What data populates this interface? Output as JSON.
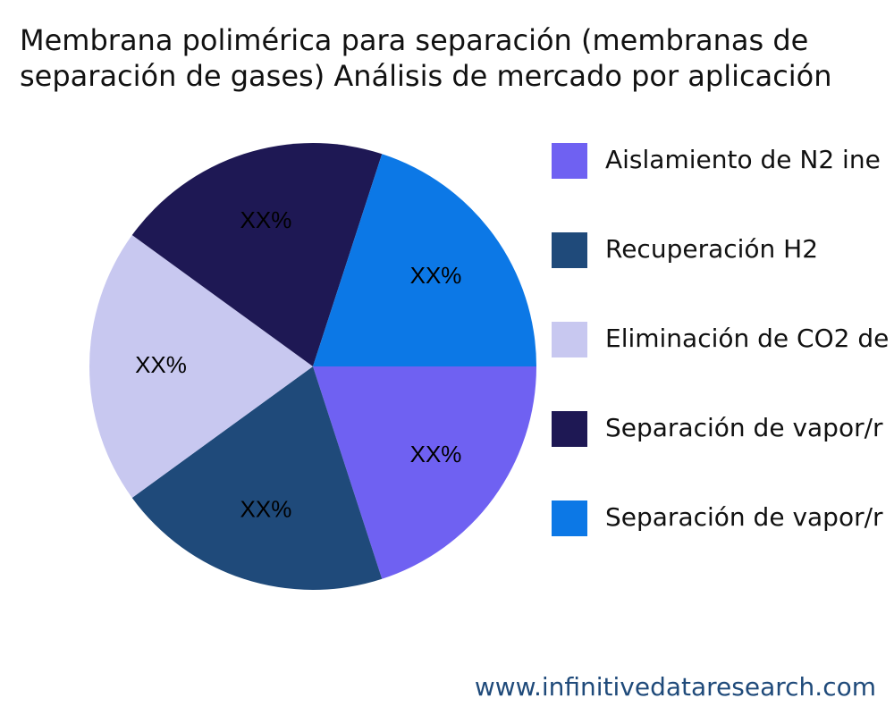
{
  "chart_data": {
    "type": "pie",
    "title": [
      "Membrana polimérica para separación (membranas de",
      "separación de gases) Análisis de mercado por aplicación"
    ],
    "categories": [
      "Aislamiento de N2 ine",
      "Recuperación H2",
      "Eliminación de CO2 de",
      "Separación de vapor/r",
      "Separación de vapor/r"
    ],
    "values": [
      20,
      20,
      20,
      20,
      20
    ],
    "value_labels": [
      "XX%",
      "XX%",
      "XX%",
      "XX%",
      "XX%"
    ],
    "colors": [
      "#6f61f2",
      "#1f4a7a",
      "#c8c8f0",
      "#1e1854",
      "#0c78e6"
    ],
    "source": "www.infinitivedataresearch.com"
  }
}
